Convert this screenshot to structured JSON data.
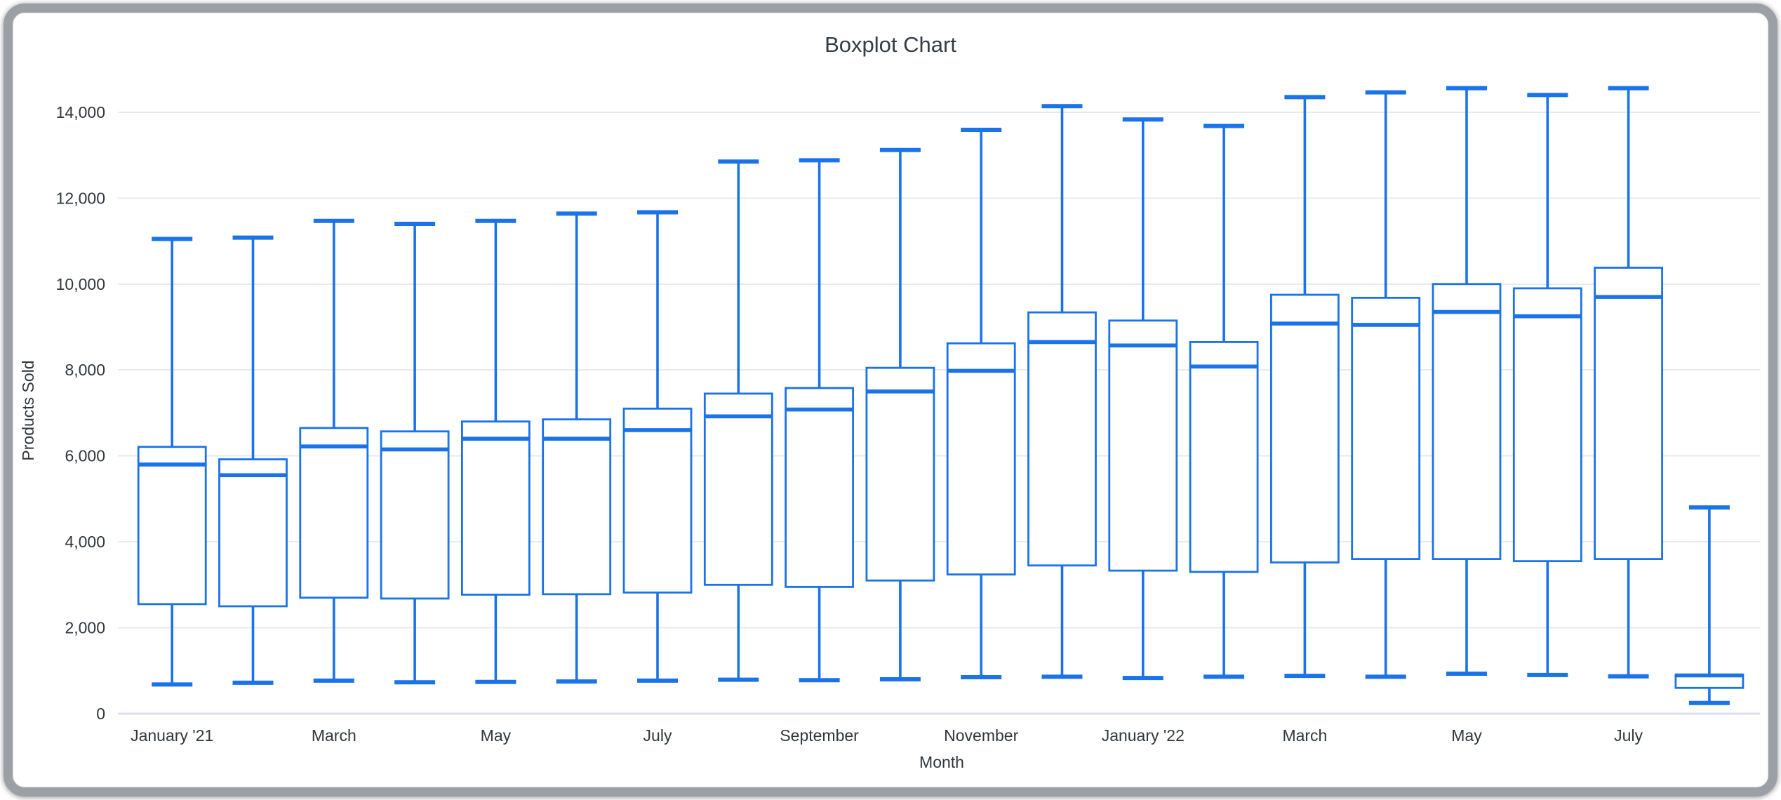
{
  "window": {
    "frame_color": "#9aa0a5",
    "background_color": "#ffffff"
  },
  "chart": {
    "title": "Boxplot Chart",
    "y_axis_title": "Products Sold",
    "x_axis_title": "Month",
    "colors": {
      "series_blue": "#1a73e8",
      "gridline": "#e9eaec",
      "zero_line": "#d9e0f0",
      "title_text": "#333d45",
      "tick_text": "#30373d",
      "plot_background": "#ffffff"
    }
  },
  "chart_data": {
    "type": "boxplot",
    "title": "Boxplot Chart",
    "xlabel": "Month",
    "ylabel": "Products Sold",
    "grid": true,
    "legend": "none",
    "ylim": [
      0,
      14600
    ],
    "y_ticks": [
      {
        "value": 0,
        "label": "0"
      },
      {
        "value": 2000,
        "label": "2,000"
      },
      {
        "value": 4000,
        "label": "4,000"
      },
      {
        "value": 6000,
        "label": "6,000"
      },
      {
        "value": 8000,
        "label": "8,000"
      },
      {
        "value": 10000,
        "label": "10,000"
      },
      {
        "value": 12000,
        "label": "12,000"
      },
      {
        "value": 14000,
        "label": "14,000"
      }
    ],
    "x_ticks": [
      {
        "box_index": 0,
        "label": "January '21"
      },
      {
        "box_index": 2,
        "label": "March"
      },
      {
        "box_index": 4,
        "label": "May"
      },
      {
        "box_index": 6,
        "label": "July"
      },
      {
        "box_index": 8,
        "label": "September"
      },
      {
        "box_index": 10,
        "label": "November"
      },
      {
        "box_index": 12,
        "label": "January '22"
      },
      {
        "box_index": 14,
        "label": "March"
      },
      {
        "box_index": 16,
        "label": "May"
      },
      {
        "box_index": 18,
        "label": "July"
      }
    ],
    "boxes": [
      {
        "min": 680,
        "q1": 2550,
        "median": 5800,
        "q3": 6210,
        "max": 11050
      },
      {
        "min": 720,
        "q1": 2500,
        "median": 5550,
        "q3": 5920,
        "max": 11080
      },
      {
        "min": 770,
        "q1": 2700,
        "median": 6220,
        "q3": 6650,
        "max": 11470
      },
      {
        "min": 730,
        "q1": 2680,
        "median": 6150,
        "q3": 6570,
        "max": 11400
      },
      {
        "min": 740,
        "q1": 2770,
        "median": 6400,
        "q3": 6800,
        "max": 11470
      },
      {
        "min": 750,
        "q1": 2780,
        "median": 6400,
        "q3": 6850,
        "max": 11640
      },
      {
        "min": 770,
        "q1": 2820,
        "median": 6600,
        "q3": 7100,
        "max": 11670
      },
      {
        "min": 790,
        "q1": 3000,
        "median": 6920,
        "q3": 7450,
        "max": 12850
      },
      {
        "min": 780,
        "q1": 2950,
        "median": 7080,
        "q3": 7580,
        "max": 12880
      },
      {
        "min": 800,
        "q1": 3100,
        "median": 7500,
        "q3": 8050,
        "max": 13120
      },
      {
        "min": 850,
        "q1": 3240,
        "median": 7980,
        "q3": 8620,
        "max": 13590
      },
      {
        "min": 860,
        "q1": 3450,
        "median": 8650,
        "q3": 9340,
        "max": 14140
      },
      {
        "min": 830,
        "q1": 3330,
        "median": 8570,
        "q3": 9150,
        "max": 13830
      },
      {
        "min": 860,
        "q1": 3300,
        "median": 8080,
        "q3": 8650,
        "max": 13680
      },
      {
        "min": 880,
        "q1": 3520,
        "median": 9080,
        "q3": 9750,
        "max": 14350
      },
      {
        "min": 860,
        "q1": 3600,
        "median": 9050,
        "q3": 9680,
        "max": 14460
      },
      {
        "min": 930,
        "q1": 3600,
        "median": 9350,
        "q3": 10000,
        "max": 14560
      },
      {
        "min": 900,
        "q1": 3550,
        "median": 9250,
        "q3": 9900,
        "max": 14400
      },
      {
        "min": 870,
        "q1": 3600,
        "median": 9700,
        "q3": 10380,
        "max": 14560
      },
      {
        "min": 250,
        "q1": 600,
        "median": 890,
        "q3": 910,
        "max": 4800
      }
    ]
  }
}
